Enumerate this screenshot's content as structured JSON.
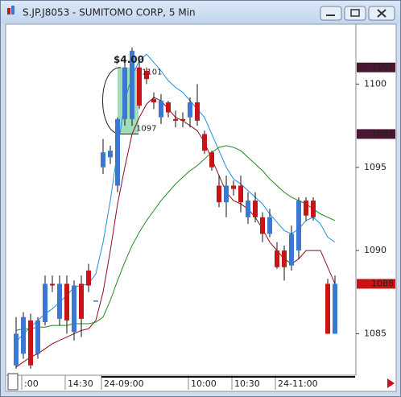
{
  "window_title": "S.JP.J8053 - SUMITOMO CORP, 5 Min",
  "chart_data": {
    "type": "candlestick",
    "categories": [
      null,
      ":00",
      null,
      null,
      null,
      null,
      null,
      "14:30",
      null,
      null,
      null,
      null,
      "24-09:00",
      null,
      null,
      null,
      null,
      null,
      null,
      null,
      null,
      null,
      null,
      null,
      "10:00",
      null,
      null,
      null,
      null,
      null,
      "10:30",
      null,
      null,
      null,
      null,
      null,
      "24-11:00",
      null,
      null,
      null,
      null,
      null,
      null,
      null,
      null
    ],
    "open": [
      1083.1,
      1083.8,
      1085.8,
      1083.8,
      1085.7,
      1088,
      1085.9,
      1088,
      1085.1,
      1088,
      1088.8,
      1087,
      1095,
      1095.6,
      1093.9,
      1097.9,
      1097.9,
      1101,
      1100.8,
      1099.1,
      1098,
      1098.9,
      1097.9,
      1097.9,
      1098,
      1098.9,
      1097,
      1095.9,
      1093.9,
      1092.9,
      1093.9,
      1093.9,
      1092,
      1093,
      1092,
      1091,
      1090,
      1090,
      1089.1,
      1090,
      1093,
      1093,
      null,
      1088,
      1085
    ],
    "high": [
      1086,
      1086.3,
      1086.2,
      1086,
      1088.5,
      1088.5,
      1088.5,
      1088.5,
      1088.2,
      1088.5,
      1089.2,
      1087,
      1096.7,
      1096.3,
      1098,
      1101.5,
      1102.2,
      1101.3,
      1101,
      1099.5,
      1099.4,
      1099,
      1098.4,
      1098.3,
      1099.2,
      1100,
      1097.2,
      1096,
      1094.5,
      1094.5,
      1094.2,
      1094.5,
      1093.5,
      1093.5,
      1092.3,
      1092.5,
      1090.5,
      1090.3,
      1091.5,
      1093.2,
      1093.2,
      1093.2,
      null,
      1088.3,
      1088.5
    ],
    "low": [
      1082.9,
      1083.5,
      1082.9,
      1083.5,
      1085.5,
      1087.5,
      1085.5,
      1085,
      1084.6,
      1084.8,
      1087.5,
      1087,
      1094.6,
      1095.2,
      1093.5,
      1097.5,
      1097.5,
      1098.5,
      1100,
      1098.5,
      1097.6,
      1098,
      1097.4,
      1097.4,
      1097.4,
      1097.5,
      1095.8,
      1094.8,
      1092.6,
      1092,
      1093.3,
      1092.3,
      1091.6,
      1091.7,
      1090.5,
      1090.8,
      1088.9,
      1088.2,
      1088.8,
      1089.5,
      1091.8,
      1091.8,
      null,
      1085,
      1085
    ],
    "close": [
      1085,
      1086,
      1083.1,
      1085.8,
      1088,
      1087.9,
      1088,
      1085.8,
      1087.9,
      1085.9,
      1087.9,
      1087,
      1095.9,
      1096,
      1097.9,
      1101,
      1102,
      1098.7,
      1100.3,
      1098.9,
      1099,
      1098.3,
      1097.8,
      1097.8,
      1098.9,
      1097.8,
      1096,
      1095,
      1092.9,
      1093.9,
      1093.7,
      1092.9,
      1093,
      1092,
      1091,
      1092,
      1089,
      1089,
      1091,
      1093,
      1092.1,
      1092,
      null,
      1085,
      1088
    ],
    "up_color": "#3b78d4",
    "down_color": "#c81414",
    "lines": [
      {
        "color": "#1e8fe0",
        "values": [
          1084.5,
          1085,
          1085.4,
          1085.8,
          1086.2,
          1086.5,
          1086.9,
          1087.3,
          1087.8,
          1087.9,
          1088,
          1088.6,
          1090.5,
          1093,
          1096,
          1099,
          1100.5,
          1101.4,
          1101.8,
          1101.3,
          1100.8,
          1100.2,
          1099.8,
          1099.5,
          1099,
          1098.5,
          1098,
          1097,
          1096,
          1095,
          1094.3,
          1094,
          1093.6,
          1093.2,
          1092.8,
          1092.2,
          1091.7,
          1091.2,
          1091,
          1091.3,
          1091.8,
          1092,
          1091.6,
          1090.8,
          1090.5
        ]
      },
      {
        "color": "#8b0f1a",
        "values": [
          1083,
          1083.3,
          1083.6,
          1083.8,
          1084.1,
          1084.4,
          1084.6,
          1084.8,
          1085,
          1085.2,
          1085.3,
          1085.8,
          1087.5,
          1090,
          1092.8,
          1095,
          1097,
          1098,
          1098.8,
          1099.2,
          1099,
          1098.5,
          1098,
          1097.8,
          1097.5,
          1097.2,
          1096.5,
          1095.5,
          1094.5,
          1093.5,
          1093,
          1092.8,
          1092.5,
          1092,
          1091.3,
          1090.5,
          1090,
          1089.5,
          1089.2,
          1089.5,
          1090,
          1090,
          1090,
          1089,
          1088
        ]
      },
      {
        "color": "#1f8a1f",
        "values": [
          1085.2,
          1085.3,
          1085.3,
          1085.4,
          1085.4,
          1085.5,
          1085.5,
          1085.5,
          1085.6,
          1085.6,
          1085.6,
          1085.7,
          1086,
          1087,
          1088.2,
          1089.3,
          1090.3,
          1091.1,
          1091.8,
          1092.4,
          1093,
          1093.5,
          1094,
          1094.4,
          1094.8,
          1095.1,
          1095.5,
          1095.9,
          1096.2,
          1096.3,
          1096.2,
          1096,
          1095.6,
          1095.2,
          1094.8,
          1094.3,
          1093.9,
          1093.5,
          1093.2,
          1093,
          1092.8,
          1092.5,
          1092.2,
          1092,
          1091.8
        ]
      }
    ],
    "ylim": [
      1082.7,
      1103.6
    ],
    "yticks": [
      1085,
      1090,
      1095,
      1100
    ],
    "price_markers": [
      {
        "value": 1101,
        "color": "#4a1632"
      },
      {
        "value": 1097,
        "color": "#4a1632"
      },
      {
        "value": 1088,
        "color": "#c81414"
      }
    ],
    "measure": {
      "label": "$4.00",
      "high": 1101,
      "low": 1097,
      "color": "#7fd3a0"
    }
  }
}
